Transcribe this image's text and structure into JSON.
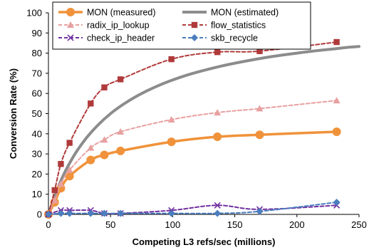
{
  "chart_data": {
    "type": "line",
    "title": "",
    "xlabel": "Competing L3 refs/sec (millions)",
    "ylabel": "Conversion Rate (%)",
    "xlim": [
      0,
      250
    ],
    "ylim": [
      0,
      100
    ],
    "xticks": [
      "0",
      "50",
      "100",
      "150",
      "200",
      "250"
    ],
    "yticks": [
      "0",
      "10",
      "20",
      "30",
      "40",
      "50",
      "60",
      "70",
      "80",
      "90",
      "100"
    ],
    "grid": false,
    "legend_position": "top",
    "series": [
      {
        "name": "MON (measured)",
        "color": "#f0923a",
        "style": "solid",
        "marker": "circle",
        "x": [
          0,
          5,
          10,
          17,
          34,
          45,
          58,
          99,
          136,
          170,
          232
        ],
        "y": [
          0,
          6,
          13,
          19,
          27,
          29.5,
          31.5,
          36,
          38.5,
          39.5,
          41
        ]
      },
      {
        "name": "MON (estimated)",
        "color": "#8c8c8c",
        "style": "solid",
        "marker": "none",
        "x": [
          0,
          10,
          20,
          30,
          40,
          50,
          60,
          70,
          80,
          90,
          100,
          110,
          120,
          130,
          140,
          150,
          160,
          170,
          180,
          190,
          200,
          210,
          220,
          230,
          240,
          250
        ],
        "y": [
          0,
          16.7,
          28.6,
          37.5,
          44.4,
          50,
          54.5,
          58.3,
          61.5,
          64.3,
          66.7,
          68.8,
          70.6,
          72.2,
          73.7,
          75,
          76.2,
          77.3,
          78.3,
          79.2,
          80,
          80.8,
          81.5,
          82.1,
          82.8,
          83.3
        ]
      },
      {
        "name": "radix_ip_lookup",
        "color": "#e8a0a0",
        "style": "dashed",
        "marker": "triangle",
        "x": [
          0,
          5,
          10,
          17,
          34,
          45,
          58,
          99,
          136,
          170,
          232
        ],
        "y": [
          0,
          7,
          15,
          22,
          33,
          37,
          41,
          47,
          50.5,
          52.5,
          56.5
        ]
      },
      {
        "name": "flow_statistics",
        "color": "#b03a3a",
        "style": "dashed",
        "marker": "square",
        "x": [
          0,
          5,
          10,
          17,
          34,
          45,
          58,
          99,
          136,
          170,
          232
        ],
        "y": [
          0,
          12,
          25,
          35.5,
          55,
          63,
          67,
          77,
          80.5,
          81,
          85.5
        ]
      },
      {
        "name": "check_ip_header",
        "color": "#7030a0",
        "style": "dashed",
        "marker": "x",
        "x": [
          0,
          10,
          17,
          34,
          45,
          58,
          99,
          136,
          170,
          232
        ],
        "y": [
          0,
          2,
          2,
          2,
          0.5,
          0.5,
          2,
          4.5,
          2.5,
          4.5
        ]
      },
      {
        "name": "skb_recycle",
        "color": "#4a7ebf",
        "style": "dashed",
        "marker": "diamond",
        "x": [
          0,
          10,
          17,
          34,
          45,
          58,
          99,
          136,
          170,
          232
        ],
        "y": [
          0,
          0.5,
          0.5,
          0.5,
          0.5,
          0.5,
          0.5,
          0.5,
          1.5,
          6
        ]
      }
    ]
  }
}
